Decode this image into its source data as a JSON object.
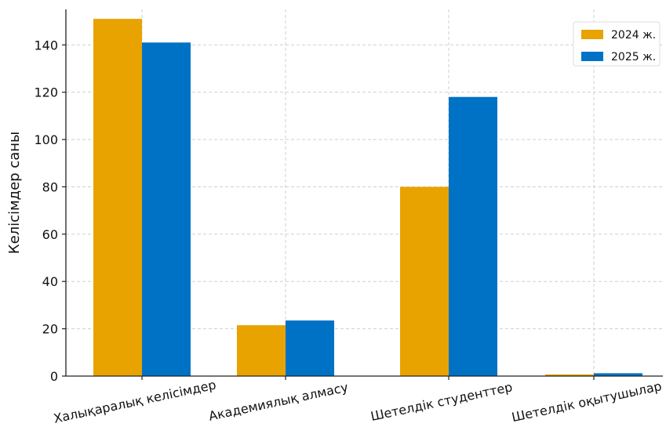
{
  "chart_data": {
    "type": "bar",
    "categories": [
      "Халықаралық келісімдер",
      "Академиялық алмасу",
      "Шетелдік студенттер",
      "Шетелдік оқытушылар"
    ],
    "series": [
      {
        "name": "2024 ж.",
        "color": "#E8A300",
        "values": [
          151,
          21.5,
          80,
          0.7
        ]
      },
      {
        "name": "2025 ж.",
        "color": "#0072C6",
        "values": [
          141,
          23.5,
          118,
          1.2
        ]
      }
    ],
    "title": "",
    "xlabel": "",
    "ylabel": "Келісімдер саны",
    "ylim": [
      0,
      155
    ],
    "yticks": [
      0,
      20,
      40,
      60,
      80,
      100,
      120,
      140
    ],
    "grid": true,
    "legend_position": "top-right"
  }
}
